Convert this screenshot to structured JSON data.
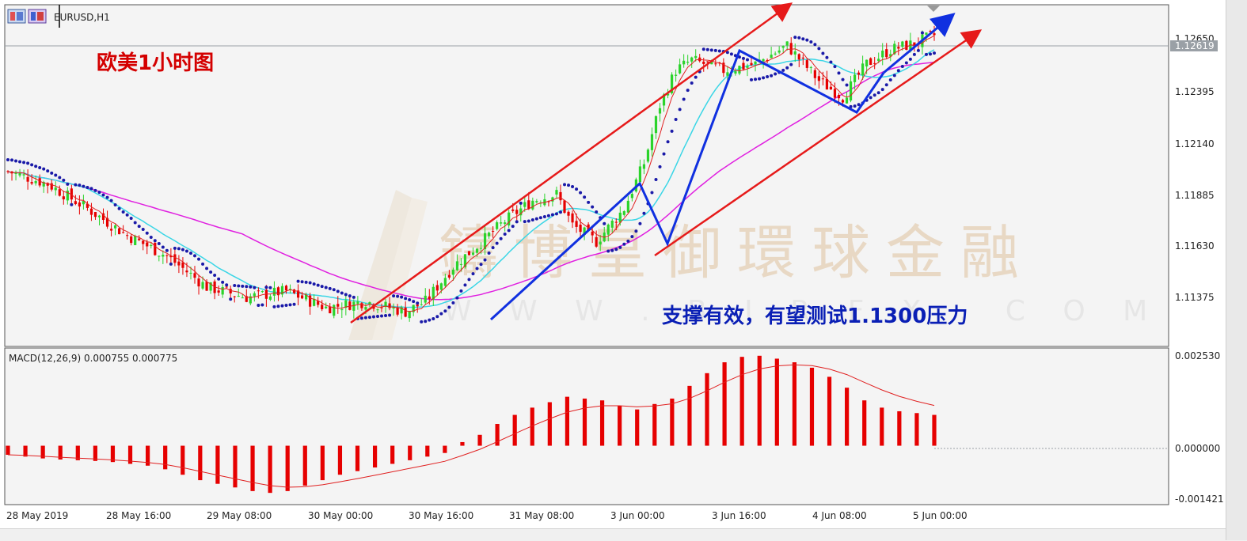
{
  "window": {
    "symbol_label": "EURUSD,H1",
    "price_tag": "1.12619",
    "top_price_partial": "1.12650"
  },
  "annotations": {
    "title": "欧美1小时图",
    "comment": "支撑有效，有望测试1.1300压力",
    "watermark_cn": "鑄博皇御環球金融",
    "watermark_en": "W W W . B I R F X . C O M"
  },
  "colors": {
    "background": "#f4f4f4",
    "bull_candle": "#2bd32b",
    "bear_candle": "#e60000",
    "ma_fast": "#e02020",
    "ma_mid": "#3ad6e6",
    "ma_slow": "#e020e0",
    "psar": "#1a1aa8",
    "trend_blue": "#1030e0",
    "channel_red": "#e61a1a",
    "macd_hist": "#e60000",
    "macd_signal": "#e02020"
  },
  "indicator": {
    "macd_label": "MACD(12,26,9) 0.000755 0.000775"
  },
  "chart_data": {
    "type": "candlestick",
    "symbol": "EURUSD",
    "timeframe": "H1",
    "price_axis": {
      "ticks": [
        "1.12650",
        "1.12395",
        "1.12140",
        "1.11885",
        "1.11630",
        "1.11375"
      ],
      "range": [
        1.1112,
        1.1276
      ]
    },
    "time_axis": {
      "ticks": [
        "28 May 2019",
        "28 May 16:00",
        "29 May 08:00",
        "30 May 00:00",
        "30 May 16:00",
        "31 May 08:00",
        "3 Jun 00:00",
        "3 Jun 16:00",
        "4 Jun 08:00",
        "5 Jun 00:00"
      ]
    },
    "close_path": [
      [
        0,
        1.1196
      ],
      [
        10,
        1.119
      ],
      [
        20,
        1.1178
      ],
      [
        30,
        1.1165
      ],
      [
        40,
        1.1155
      ],
      [
        50,
        1.114
      ],
      [
        60,
        1.1135
      ],
      [
        70,
        1.1138
      ],
      [
        80,
        1.113
      ],
      [
        90,
        1.1133
      ],
      [
        100,
        1.1128
      ],
      [
        105,
        1.1133
      ],
      [
        112,
        1.115
      ],
      [
        118,
        1.116
      ],
      [
        125,
        1.1172
      ],
      [
        132,
        1.1182
      ],
      [
        138,
        1.1185
      ],
      [
        142,
        1.117
      ],
      [
        148,
        1.1162
      ],
      [
        155,
        1.1178
      ],
      [
        160,
        1.12
      ],
      [
        164,
        1.1228
      ],
      [
        168,
        1.1245
      ],
      [
        172,
        1.125
      ],
      [
        180,
        1.1245
      ],
      [
        188,
        1.1248
      ],
      [
        196,
        1.1257
      ],
      [
        204,
        1.124
      ],
      [
        210,
        1.1232
      ],
      [
        216,
        1.1248
      ],
      [
        222,
        1.1255
      ],
      [
        228,
        1.1258
      ],
      [
        233,
        1.1262
      ]
    ],
    "macd_axis": {
      "ticks": [
        "0.002530",
        "0.000000",
        "-0.001421"
      ],
      "range": [
        -0.00158,
        0.00265
      ]
    },
    "macd_hist": [
      -0.00025,
      -0.0003,
      -0.00035,
      -0.00038,
      -0.0004,
      -0.00042,
      -0.00045,
      -0.0005,
      -0.00055,
      -0.00065,
      -0.0008,
      -0.00095,
      -0.00105,
      -0.00115,
      -0.00125,
      -0.0013,
      -0.00125,
      -0.0011,
      -0.00095,
      -0.0008,
      -0.0007,
      -0.0006,
      -0.0005,
      -0.0004,
      -0.0003,
      -0.0002,
      0.0001,
      0.0003,
      0.0006,
      0.00085,
      0.00105,
      0.0012,
      0.00135,
      0.0013,
      0.00125,
      0.0011,
      0.001,
      0.00115,
      0.0013,
      0.00165,
      0.002,
      0.0023,
      0.00245,
      0.00248,
      0.0024,
      0.0023,
      0.00215,
      0.0019,
      0.0016,
      0.00125,
      0.00105,
      0.00095,
      0.0009,
      0.00085
    ]
  }
}
